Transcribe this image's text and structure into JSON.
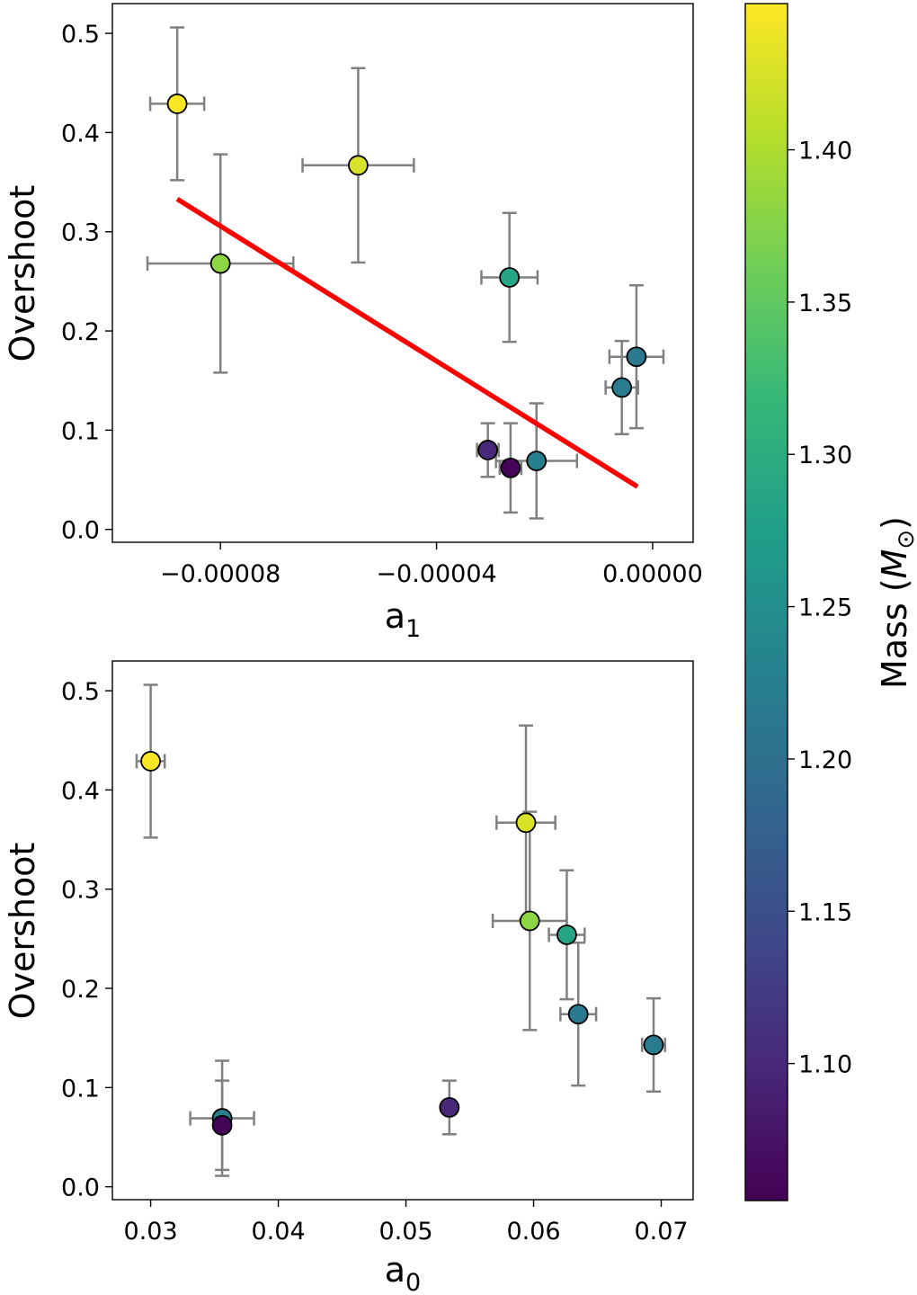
{
  "chart_data": [
    {
      "type": "scatter",
      "xlabel": "a",
      "xlabel_sub": "1",
      "ylabel": "Overshoot",
      "xlim": [
        -0.0001,
        7.5e-06
      ],
      "ylim": [
        -0.013,
        0.53
      ],
      "xticks": [
        -8e-05,
        -4e-05,
        0.0
      ],
      "xtick_labels": [
        "−0.00008",
        "−0.00004",
        "0.00000"
      ],
      "yticks": [
        0.0,
        0.1,
        0.2,
        0.3,
        0.4,
        0.5
      ],
      "ytick_labels": [
        "0.0",
        "0.1",
        "0.2",
        "0.3",
        "0.4",
        "0.5"
      ],
      "points": [
        {
          "x": -8.8e-05,
          "y": 0.429,
          "xerr": 5e-06,
          "yerr_low": 0.077,
          "yerr_high": 0.077,
          "mass": 1.445
        },
        {
          "x": -5.45e-05,
          "y": 0.367,
          "xerr": 1.03e-05,
          "yerr_low": 0.098,
          "yerr_high": 0.098,
          "mass": 1.425
        },
        {
          "x": -8e-05,
          "y": 0.268,
          "xerr": 1.35e-05,
          "yerr_low": 0.11,
          "yerr_high": 0.11,
          "mass": 1.38
        },
        {
          "x": -2.65e-05,
          "y": 0.254,
          "xerr": 5.2e-06,
          "yerr_low": 0.065,
          "yerr_high": 0.065,
          "mass": 1.285
        },
        {
          "x": -3e-06,
          "y": 0.174,
          "xerr": 5e-06,
          "yerr_low": 0.072,
          "yerr_high": 0.072,
          "mass": 1.215
        },
        {
          "x": -5.7e-06,
          "y": 0.143,
          "xerr": 3e-06,
          "yerr_low": 0.047,
          "yerr_high": 0.047,
          "mass": 1.22
        },
        {
          "x": -2.15e-05,
          "y": 0.069,
          "xerr": 7.5e-06,
          "yerr_low": 0.058,
          "yerr_high": 0.058,
          "mass": 1.225
        },
        {
          "x": -3.05e-05,
          "y": 0.08,
          "xerr": 2e-06,
          "yerr_low": 0.027,
          "yerr_high": 0.027,
          "mass": 1.1
        },
        {
          "x": -2.63e-05,
          "y": 0.062,
          "xerr": 2e-06,
          "yerr_low": 0.045,
          "yerr_high": 0.045,
          "mass": 1.06
        }
      ],
      "fit_line": {
        "x": [
          -8.8e-05,
          -2.8e-06
        ],
        "y": [
          0.333,
          0.043
        ],
        "color": "#ff0000"
      }
    },
    {
      "type": "scatter",
      "xlabel": "a",
      "xlabel_sub": "0",
      "ylabel": "Overshoot",
      "xlim": [
        0.027,
        0.0725
      ],
      "ylim": [
        -0.013,
        0.53
      ],
      "xticks": [
        0.03,
        0.04,
        0.05,
        0.06,
        0.07
      ],
      "xtick_labels": [
        "0.03",
        "0.04",
        "0.05",
        "0.06",
        "0.07"
      ],
      "yticks": [
        0.0,
        0.1,
        0.2,
        0.3,
        0.4,
        0.5
      ],
      "ytick_labels": [
        "0.0",
        "0.1",
        "0.2",
        "0.3",
        "0.4",
        "0.5"
      ],
      "points": [
        {
          "x": 0.03,
          "y": 0.429,
          "xerr": 0.0011,
          "yerr_low": 0.077,
          "yerr_high": 0.077,
          "mass": 1.445
        },
        {
          "x": 0.0594,
          "y": 0.367,
          "xerr": 0.0023,
          "yerr_low": 0.098,
          "yerr_high": 0.098,
          "mass": 1.425
        },
        {
          "x": 0.0597,
          "y": 0.268,
          "xerr": 0.0029,
          "yerr_low": 0.11,
          "yerr_high": 0.11,
          "mass": 1.38
        },
        {
          "x": 0.0626,
          "y": 0.254,
          "xerr": 0.0014,
          "yerr_low": 0.065,
          "yerr_high": 0.065,
          "mass": 1.285
        },
        {
          "x": 0.0635,
          "y": 0.174,
          "xerr": 0.0014,
          "yerr_low": 0.072,
          "yerr_high": 0.072,
          "mass": 1.215
        },
        {
          "x": 0.0694,
          "y": 0.143,
          "xerr": 0.0009,
          "yerr_low": 0.047,
          "yerr_high": 0.047,
          "mass": 1.22
        },
        {
          "x": 0.0356,
          "y": 0.069,
          "xerr": 0.0025,
          "yerr_low": 0.058,
          "yerr_high": 0.058,
          "mass": 1.225
        },
        {
          "x": 0.0534,
          "y": 0.08,
          "xerr": 0.0,
          "yerr_low": 0.027,
          "yerr_high": 0.027,
          "mass": 1.1
        },
        {
          "x": 0.0356,
          "y": 0.062,
          "xerr": 0.0,
          "yerr_low": 0.045,
          "yerr_high": 0.045,
          "mass": 1.06
        }
      ]
    }
  ],
  "colorbar": {
    "label": "Mass (",
    "label_symbol": "M",
    "label_sub": "⊙",
    "label_close": ")",
    "range": [
      1.055,
      1.448
    ],
    "ticks": [
      1.1,
      1.15,
      1.2,
      1.25,
      1.3,
      1.35,
      1.4
    ],
    "tick_labels": [
      "1.10",
      "1.15",
      "1.20",
      "1.25",
      "1.30",
      "1.35",
      "1.40"
    ],
    "colormap": "viridis",
    "stops": [
      "#440154",
      "#482878",
      "#3e4a89",
      "#31688e",
      "#26828e",
      "#1f9e89",
      "#35b779",
      "#6ece58",
      "#b5de2b",
      "#fde725"
    ]
  },
  "colors": {
    "errorbar": "#808080",
    "marker_edge": "#000000",
    "fit": "#ff0000"
  }
}
